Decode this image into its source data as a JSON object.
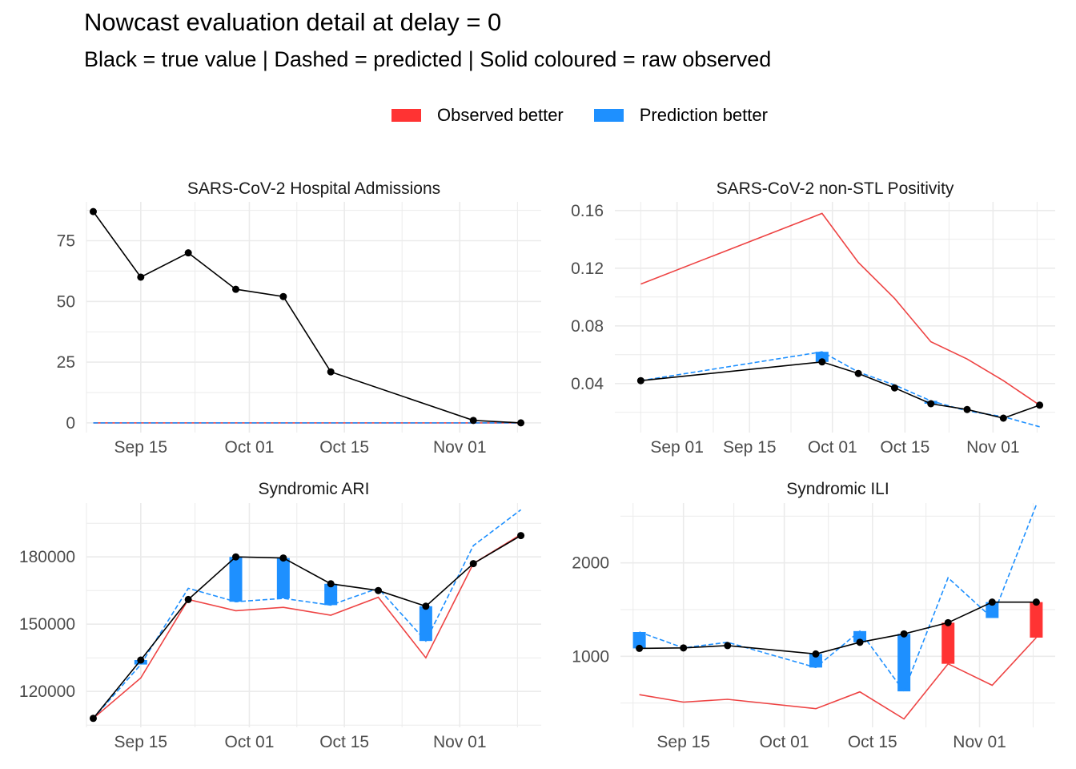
{
  "title": "Nowcast evaluation detail at delay = 0",
  "subtitle": "Black = true value  |  Dashed = predicted  |  Solid coloured = raw observed",
  "legend": {
    "items": [
      {
        "label": "Observed better",
        "color": "#FF3333"
      },
      {
        "label": "Prediction better",
        "color": "#1E90FF"
      }
    ]
  },
  "colors": {
    "true": "#000000",
    "predicted": "#1E90FF",
    "observed": "#EE4444",
    "observed_better": "#FF3333",
    "prediction_better": "#1E90FF",
    "grid": "#EBEBEB"
  },
  "chart_data": [
    {
      "type": "line",
      "title": "SARS-CoV-2 Hospital Admissions",
      "x_dates": [
        "2024-09-08",
        "2024-09-15",
        "2024-09-22",
        "2024-09-29",
        "2024-10-06",
        "2024-10-13",
        "2024-11-03",
        "2024-11-10"
      ],
      "true": [
        87,
        60,
        70,
        55,
        52,
        21,
        1,
        0
      ],
      "predicted": [
        0,
        0,
        0,
        0,
        0,
        0,
        0,
        0
      ],
      "observed": [
        0,
        0,
        0,
        0,
        0,
        0,
        0,
        0
      ],
      "bars": [],
      "xlim": [
        "2024-09-07",
        "2024-11-13"
      ],
      "ylim": [
        -4,
        91
      ],
      "yticks": [
        0,
        25,
        50,
        75
      ],
      "yticklabels": [
        "0",
        "25",
        "50",
        "75"
      ],
      "xticks": [
        "2024-09-15",
        "2024-10-01",
        "2024-10-15",
        "2024-11-01"
      ],
      "xticklabels": [
        "Sep 15",
        "Oct 01",
        "Oct 15",
        "Nov 01"
      ],
      "grid": true
    },
    {
      "type": "line",
      "title": "SARS-CoV-2 non-STL Positivity",
      "x_dates": [
        "2024-08-25",
        "2024-09-29",
        "2024-10-06",
        "2024-10-13",
        "2024-10-20",
        "2024-10-27",
        "2024-11-03",
        "2024-11-10"
      ],
      "true": [
        0.042,
        0.055,
        0.047,
        0.037,
        0.026,
        0.022,
        0.016,
        0.025
      ],
      "predicted": [
        0.042,
        0.062,
        0.048,
        0.039,
        0.028,
        0.021,
        0.017,
        0.01
      ],
      "observed": [
        0.109,
        0.158,
        0.124,
        0.099,
        0.069,
        0.057,
        0.042,
        0.025
      ],
      "bars": [
        {
          "date": "2024-09-29",
          "from": 0.055,
          "to": 0.062,
          "winner": "prediction"
        },
        {
          "date": "2024-10-20",
          "from": 0.026,
          "to": 0.028,
          "winner": "prediction"
        }
      ],
      "xlim": [
        "2024-08-20",
        "2024-11-13"
      ],
      "ylim": [
        0.006,
        0.166
      ],
      "yticks": [
        0.04,
        0.08,
        0.12,
        0.16
      ],
      "yticklabels": [
        "0.04",
        "0.08",
        "0.12",
        "0.16"
      ],
      "xticks": [
        "2024-09-01",
        "2024-09-15",
        "2024-10-01",
        "2024-10-15",
        "2024-11-01"
      ],
      "xticklabels": [
        "Sep 01",
        "Sep 15",
        "Oct 01",
        "Oct 15",
        "Nov 01"
      ],
      "grid": true
    },
    {
      "type": "line",
      "title": "Syndromic ARI",
      "x_dates": [
        "2024-09-08",
        "2024-09-15",
        "2024-09-22",
        "2024-09-29",
        "2024-10-06",
        "2024-10-13",
        "2024-10-20",
        "2024-10-27",
        "2024-11-03",
        "2024-11-10"
      ],
      "true": [
        108000,
        134000,
        161000,
        180000,
        179500,
        168000,
        165000,
        158000,
        177000,
        189500
      ],
      "predicted": [
        108000,
        132000,
        166000,
        160000,
        161500,
        158500,
        166000,
        142500,
        185000,
        201000
      ],
      "observed": [
        108000,
        126000,
        161000,
        156000,
        157500,
        154000,
        162000,
        135000,
        177000,
        190000
      ],
      "bars": [
        {
          "date": "2024-09-15",
          "from": 134000,
          "to": 132000,
          "winner": "prediction"
        },
        {
          "date": "2024-09-29",
          "from": 180000,
          "to": 160000,
          "winner": "prediction"
        },
        {
          "date": "2024-10-06",
          "from": 179500,
          "to": 161500,
          "winner": "prediction"
        },
        {
          "date": "2024-10-13",
          "from": 168000,
          "to": 158500,
          "winner": "prediction"
        },
        {
          "date": "2024-10-27",
          "from": 158000,
          "to": 142500,
          "winner": "prediction"
        }
      ],
      "xlim": [
        "2024-09-07",
        "2024-11-13"
      ],
      "ylim": [
        104000,
        204000
      ],
      "yticks": [
        120000,
        150000,
        180000
      ],
      "yticklabels": [
        "120000",
        "150000",
        "180000"
      ],
      "xticks": [
        "2024-09-15",
        "2024-10-01",
        "2024-10-15",
        "2024-11-01"
      ],
      "xticklabels": [
        "Sep 15",
        "Oct 01",
        "Oct 15",
        "Nov 01"
      ],
      "grid": true
    },
    {
      "type": "line",
      "title": "Syndromic ILI",
      "x_dates": [
        "2024-09-08",
        "2024-09-15",
        "2024-09-22",
        "2024-10-06",
        "2024-10-13",
        "2024-10-20",
        "2024-10-27",
        "2024-11-03",
        "2024-11-10"
      ],
      "true": [
        1085,
        1090,
        1115,
        1025,
        1150,
        1240,
        1360,
        1580,
        1580
      ],
      "predicted": [
        1260,
        1090,
        1150,
        880,
        1270,
        625,
        1840,
        1410,
        2620
      ],
      "observed": [
        590,
        510,
        540,
        440,
        620,
        330,
        920,
        690,
        1200
      ],
      "bars": [
        {
          "date": "2024-09-08",
          "from": 1085,
          "to": 1260,
          "winner": "prediction"
        },
        {
          "date": "2024-10-06",
          "from": 1025,
          "to": 880,
          "winner": "prediction"
        },
        {
          "date": "2024-10-13",
          "from": 1150,
          "to": 1270,
          "winner": "prediction"
        },
        {
          "date": "2024-10-20",
          "from": 1240,
          "to": 625,
          "winner": "prediction"
        },
        {
          "date": "2024-10-27",
          "from": 1360,
          "to": 920,
          "winner": "observed"
        },
        {
          "date": "2024-11-03",
          "from": 1580,
          "to": 1410,
          "winner": "prediction"
        },
        {
          "date": "2024-11-10",
          "from": 1580,
          "to": 1200,
          "winner": "observed"
        }
      ],
      "xlim": [
        "2024-09-05",
        "2024-11-13"
      ],
      "ylim": [
        240,
        2640
      ],
      "yticks": [
        1000,
        2000
      ],
      "yticklabels": [
        "1000",
        "2000"
      ],
      "xticks": [
        "2024-09-15",
        "2024-10-01",
        "2024-10-15",
        "2024-11-01"
      ],
      "xticklabels": [
        "Sep 15",
        "Oct 01",
        "Oct 15",
        "Nov 01"
      ],
      "grid": true
    }
  ]
}
